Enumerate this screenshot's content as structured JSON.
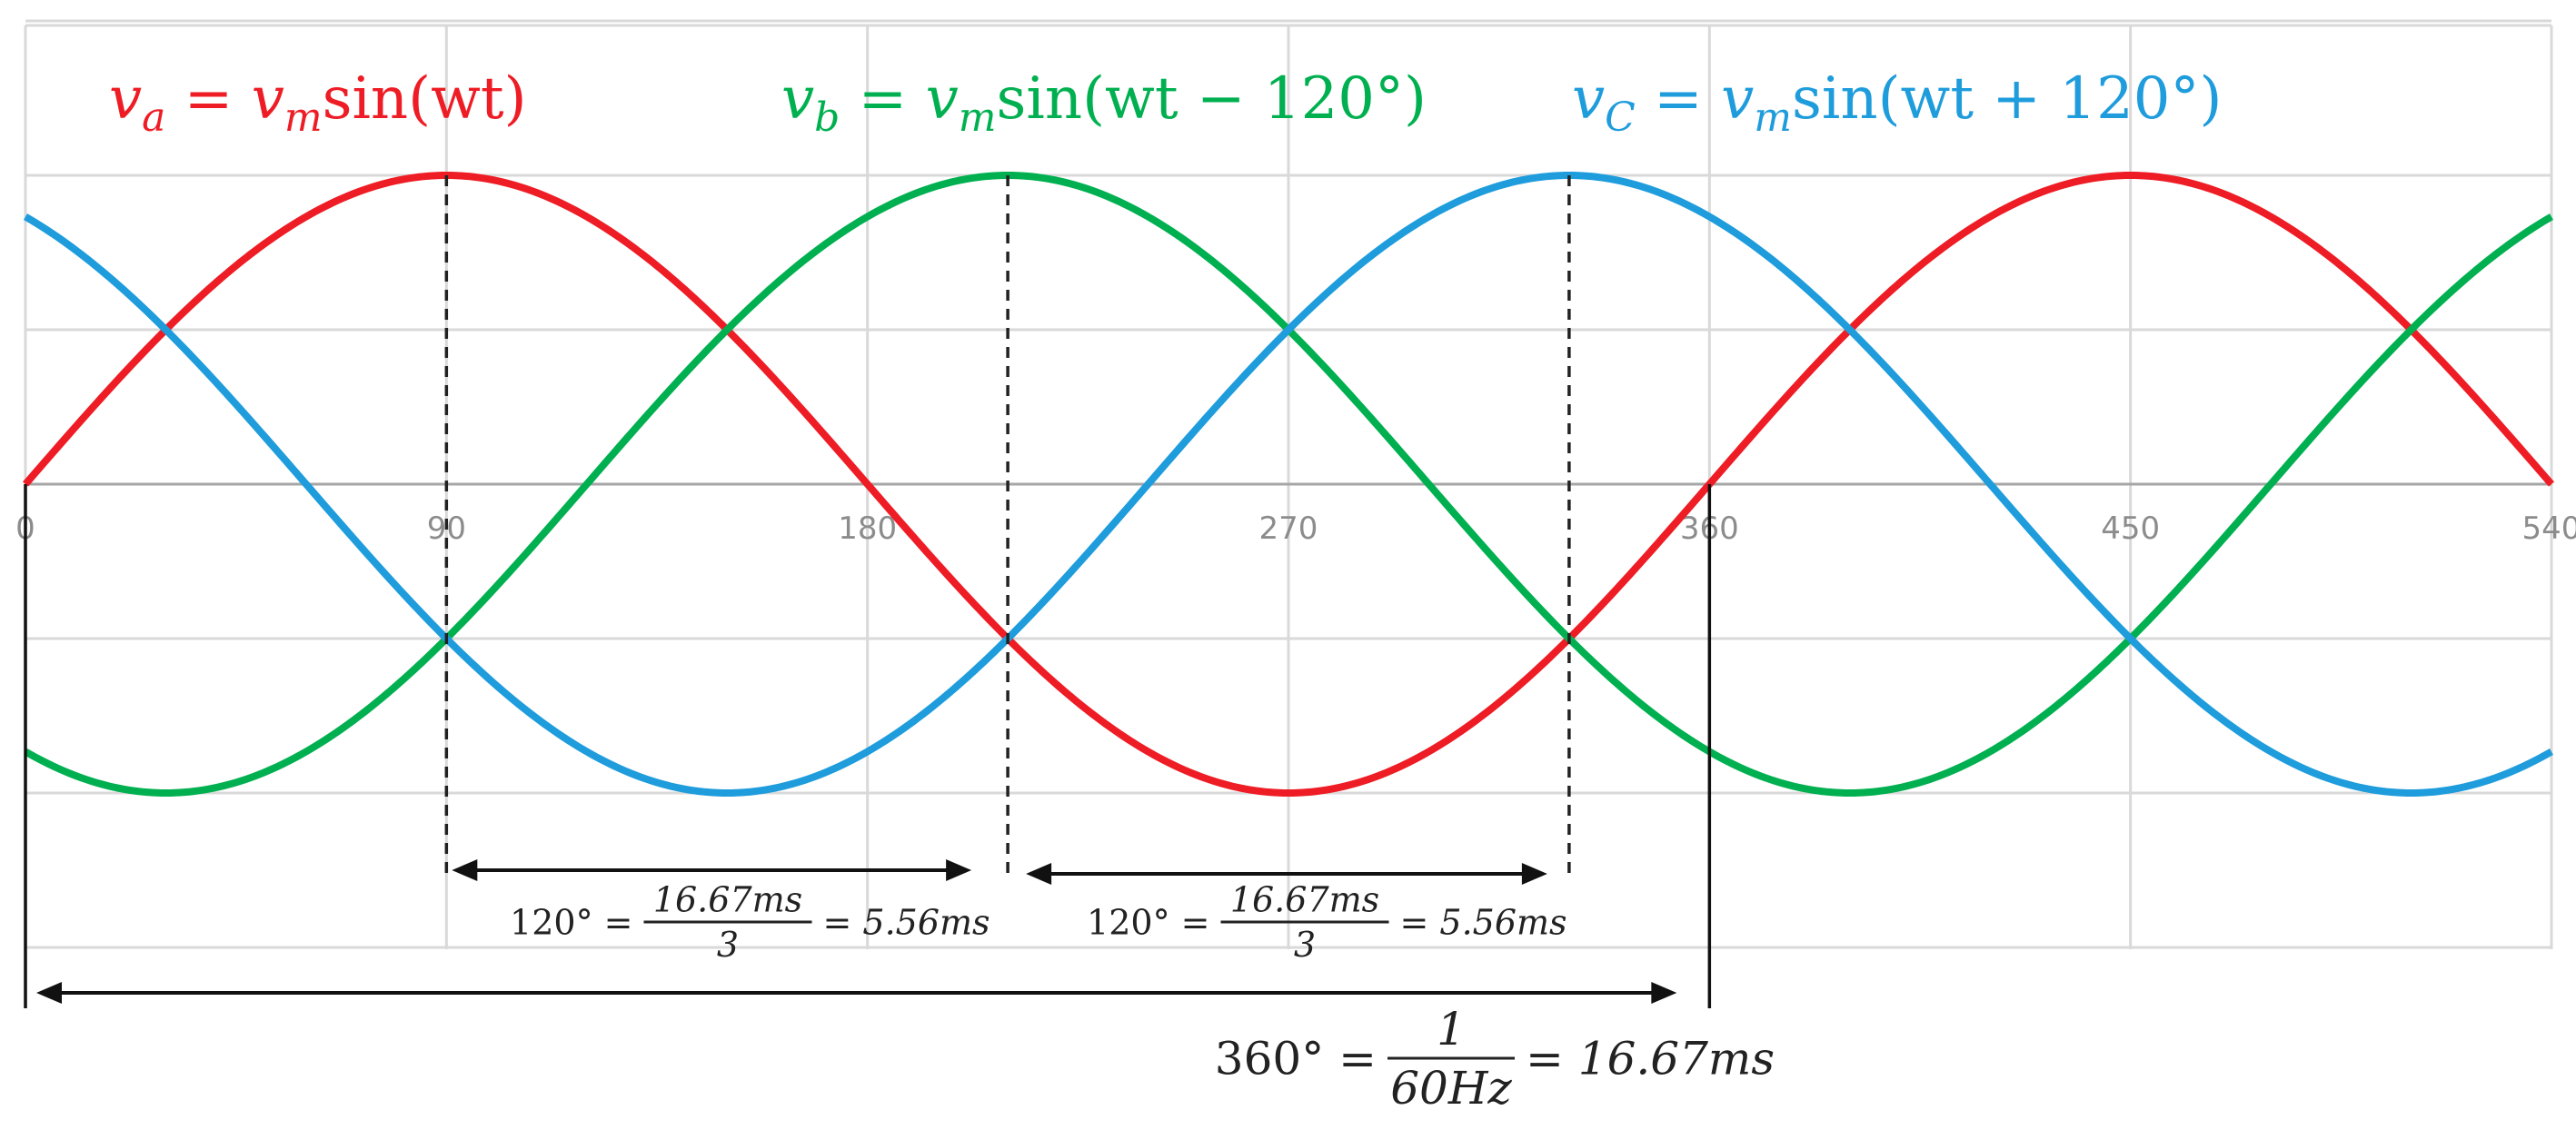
{
  "chart_data": {
    "type": "line",
    "title": "",
    "xlabel": "",
    "ylabel": "",
    "x_ticks": [
      0,
      90,
      180,
      270,
      360,
      450,
      540
    ],
    "xlim": [
      0,
      540
    ],
    "ylim": [
      -1,
      1
    ],
    "grid": true,
    "series": [
      {
        "name": "va",
        "label_base": "v",
        "label_sub": "a",
        "label_rhs": "sin(wt)",
        "phase_deg": 0,
        "amplitude": 1,
        "color": "#ee1c24"
      },
      {
        "name": "vb",
        "label_base": "v",
        "label_sub": "b",
        "label_rhs": "sin(wt − 120°)",
        "phase_deg": -120,
        "amplitude": 1,
        "color": "#00b050"
      },
      {
        "name": "vc",
        "label_base": "v",
        "label_sub": "C",
        "label_rhs": "sin(wt + 120°)",
        "phase_deg": 120,
        "amplitude": 1,
        "color": "#1e9cdc"
      }
    ],
    "label_eq": "=",
    "label_vm_base": "v",
    "label_vm_sub": "m",
    "markers_deg": [
      90,
      210,
      330
    ],
    "annotations": {
      "span_120_a": {
        "from_deg": 90,
        "to_deg": 210,
        "lhs": "120° =",
        "numerator": "16.67ms",
        "denominator": "3",
        "rhs": "= 5.56ms"
      },
      "span_120_b": {
        "from_deg": 210,
        "to_deg": 330,
        "lhs": "120° =",
        "numerator": "16.67ms",
        "denominator": "3",
        "rhs": "= 5.56ms"
      },
      "span_360": {
        "from_deg": 0,
        "to_deg": 360,
        "lhs": "360° =",
        "numerator": "1",
        "denominator": "60Hz",
        "rhs": "= 16.67ms"
      }
    }
  }
}
